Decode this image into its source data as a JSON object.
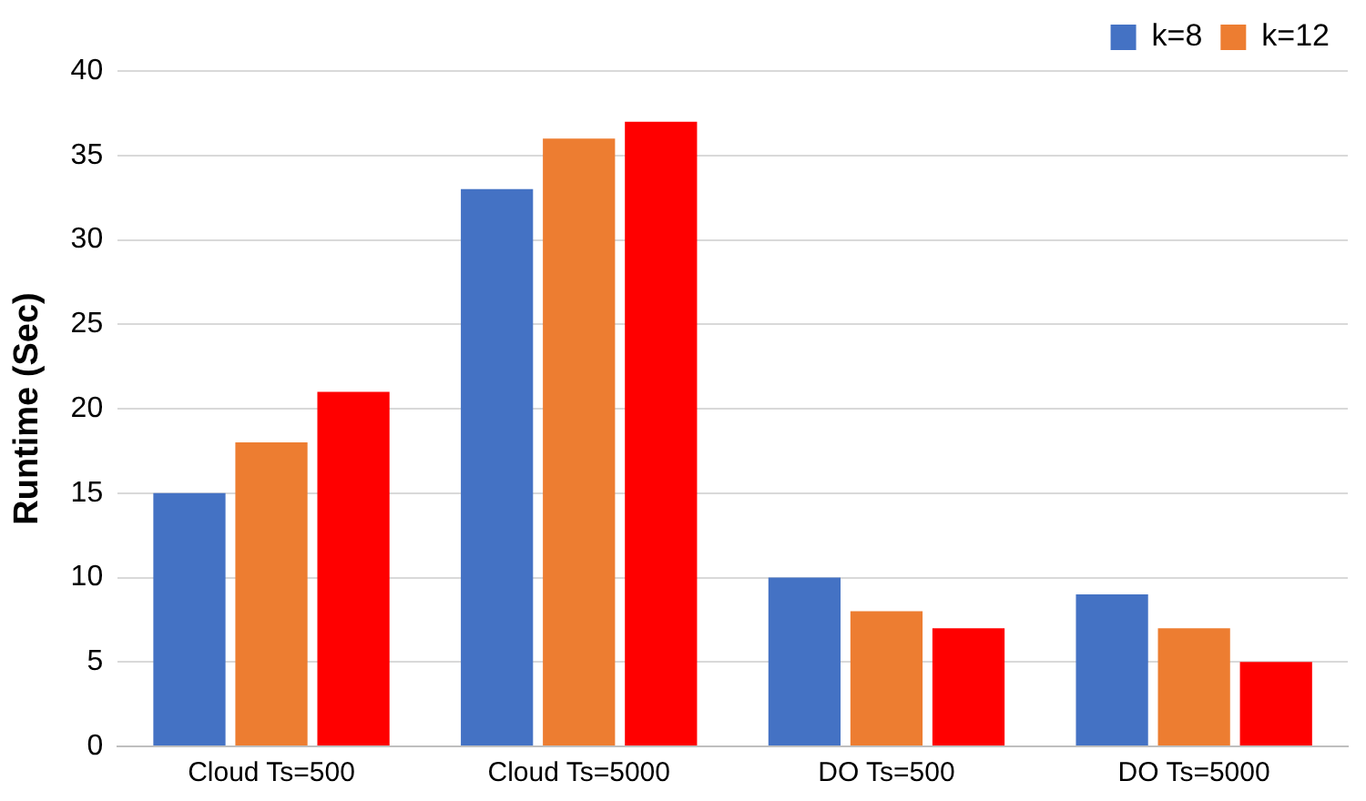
{
  "chart_data": {
    "type": "bar",
    "ylabel": "Runtime (Sec)",
    "categories": [
      "Cloud Ts=500",
      "Cloud Ts=5000",
      "DO Ts=500",
      "DO Ts=5000"
    ],
    "series": [
      {
        "name": "k=8",
        "color": "#4472c4",
        "values": [
          15,
          33,
          10,
          9
        ]
      },
      {
        "name": "k=12",
        "color": "#ed7d31",
        "values": [
          18,
          36,
          8,
          7
        ]
      },
      {
        "color": "#ff0000",
        "values": [
          21,
          37,
          7,
          5
        ]
      }
    ],
    "ylim": [
      0,
      40
    ],
    "yticks": [
      0,
      5,
      10,
      15,
      20,
      25,
      30,
      35,
      40
    ],
    "grid": "y",
    "legend": "top right"
  }
}
